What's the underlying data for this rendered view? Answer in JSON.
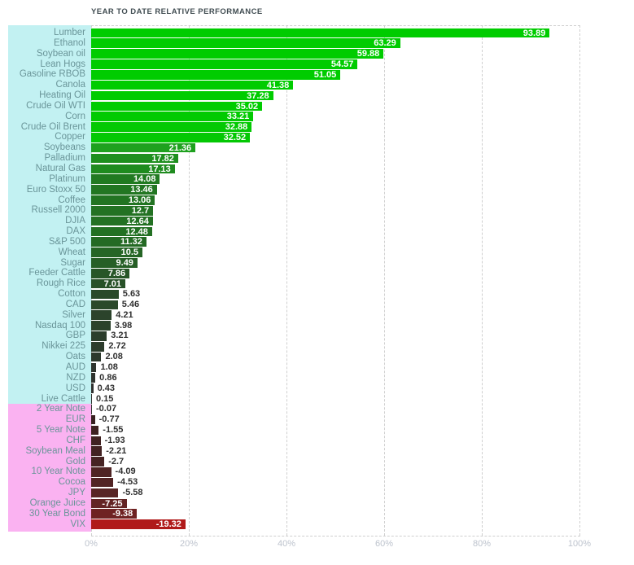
{
  "title": "YEAR TO DATE RELATIVE PERFORMANCE",
  "colors": {
    "positive_label_background": "#c2f1f2",
    "negative_label_background": "#fab2f1",
    "label_text": "#6a9599",
    "axis_text": "#bdc3cd",
    "gridline": "#cfcfcf",
    "value_inside": "#ffffff",
    "value_outside": "#303030",
    "title_text": "#414d52"
  },
  "chart_data": {
    "type": "bar",
    "orientation": "horizontal",
    "title": "YEAR TO DATE RELATIVE PERFORMANCE",
    "xlabel": "",
    "ylabel": "",
    "xlim": [
      0,
      100
    ],
    "x_ticks": [
      "0%",
      "20%",
      "40%",
      "60%",
      "80%",
      "100%"
    ],
    "grid": "dashed-vertical",
    "legend": "none",
    "value_unit": "percent",
    "items": [
      {
        "label": "Lumber",
        "value": 93.89,
        "color": "#00cc00"
      },
      {
        "label": "Ethanol",
        "value": 63.29,
        "color": "#00cc00"
      },
      {
        "label": "Soybean oil",
        "value": 59.88,
        "color": "#00cc00"
      },
      {
        "label": "Lean Hogs",
        "value": 54.57,
        "color": "#00cc00"
      },
      {
        "label": "Gasoline RBOB",
        "value": 51.05,
        "color": "#00cc00"
      },
      {
        "label": "Canola",
        "value": 41.38,
        "color": "#00cc00"
      },
      {
        "label": "Heating Oil",
        "value": 37.28,
        "color": "#00cc00"
      },
      {
        "label": "Crude Oil WTI",
        "value": 35.02,
        "color": "#00cc00"
      },
      {
        "label": "Corn",
        "value": 33.21,
        "color": "#02ca02"
      },
      {
        "label": "Crude Oil Brent",
        "value": 32.88,
        "color": "#03c903"
      },
      {
        "label": "Copper",
        "value": 32.52,
        "color": "#04c804"
      },
      {
        "label": "Soybeans",
        "value": 21.36,
        "color": "#1ea11e"
      },
      {
        "label": "Palladium",
        "value": 17.82,
        "color": "#1e8f1e"
      },
      {
        "label": "Natural Gas",
        "value": 17.13,
        "color": "#1f8b1f"
      },
      {
        "label": "Platinum",
        "value": 14.08,
        "color": "#217a21"
      },
      {
        "label": "Euro Stoxx 50",
        "value": 13.46,
        "color": "#227622"
      },
      {
        "label": "Coffee",
        "value": 13.06,
        "color": "#227422"
      },
      {
        "label": "Russell 2000",
        "value": 12.7,
        "color": "#237223"
      },
      {
        "label": "DJIA",
        "value": 12.64,
        "color": "#237123"
      },
      {
        "label": "DAX",
        "value": 12.48,
        "color": "#237023"
      },
      {
        "label": "S&P 500",
        "value": 11.32,
        "color": "#246a24"
      },
      {
        "label": "Wheat",
        "value": 10.5,
        "color": "#256525"
      },
      {
        "label": "Sugar",
        "value": 9.49,
        "color": "#265f26"
      },
      {
        "label": "Feeder Cattle",
        "value": 7.86,
        "color": "#275627"
      },
      {
        "label": "Rough Rice",
        "value": 7.01,
        "color": "#285128"
      },
      {
        "label": "Cotton",
        "value": 5.63,
        "color": "#2a4a2a"
      },
      {
        "label": "CAD",
        "value": 5.46,
        "color": "#2a492a"
      },
      {
        "label": "Silver",
        "value": 4.21,
        "color": "#2b432b"
      },
      {
        "label": "Nasdaq 100",
        "value": 3.98,
        "color": "#2b422b"
      },
      {
        "label": "GBP",
        "value": 3.21,
        "color": "#2c3e2c"
      },
      {
        "label": "Nikkei 225",
        "value": 2.72,
        "color": "#2c3c2c"
      },
      {
        "label": "Oats",
        "value": 2.08,
        "color": "#2d392d"
      },
      {
        "label": "AUD",
        "value": 1.08,
        "color": "#2e342e"
      },
      {
        "label": "NZD",
        "value": 0.86,
        "color": "#2e332e"
      },
      {
        "label": "USD",
        "value": 0.43,
        "color": "#2f312f"
      },
      {
        "label": "Live Cattle",
        "value": 0.15,
        "color": "#2f302f"
      },
      {
        "label": "2 Year Note",
        "value": -0.07,
        "color": "#332f2f"
      },
      {
        "label": "EUR",
        "value": -0.77,
        "color": "#382020"
      },
      {
        "label": "5 Year Note",
        "value": -1.55,
        "color": "#3e2121"
      },
      {
        "label": "CHF",
        "value": -1.93,
        "color": "#412222"
      },
      {
        "label": "Soybean Meal",
        "value": -2.21,
        "color": "#432222"
      },
      {
        "label": "Gold",
        "value": -2.7,
        "color": "#462323"
      },
      {
        "label": "10 Year Note",
        "value": -4.09,
        "color": "#4f2424"
      },
      {
        "label": "Cocoa",
        "value": -4.53,
        "color": "#522424"
      },
      {
        "label": "JPY",
        "value": -5.58,
        "color": "#582525"
      },
      {
        "label": "Orange Juice",
        "value": -7.25,
        "color": "#632424"
      },
      {
        "label": "30 Year Bond",
        "value": -9.38,
        "color": "#6f2222"
      },
      {
        "label": "VIX",
        "value": -19.32,
        "color": "#b01a1a"
      }
    ]
  }
}
